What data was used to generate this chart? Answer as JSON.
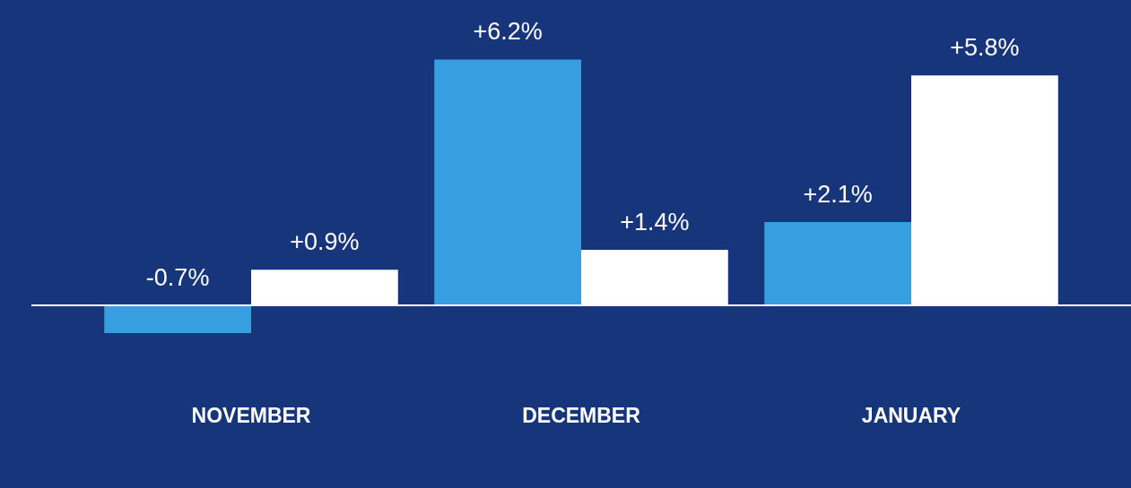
{
  "chart_data": {
    "type": "bar",
    "categories": [
      "NOVEMBER",
      "DECEMBER",
      "JANUARY"
    ],
    "series": [
      {
        "color": "#379fe0",
        "values": [
          -0.7,
          6.2,
          2.1
        ],
        "value_labels": [
          "-0.7%",
          "+6.2%",
          "+2.1%"
        ]
      },
      {
        "color": "#ffffff",
        "values": [
          0.9,
          1.4,
          5.8
        ],
        "value_labels": [
          "+0.9%",
          "+1.4%",
          "+5.8%"
        ]
      }
    ],
    "grid": false,
    "legend": false
  }
}
